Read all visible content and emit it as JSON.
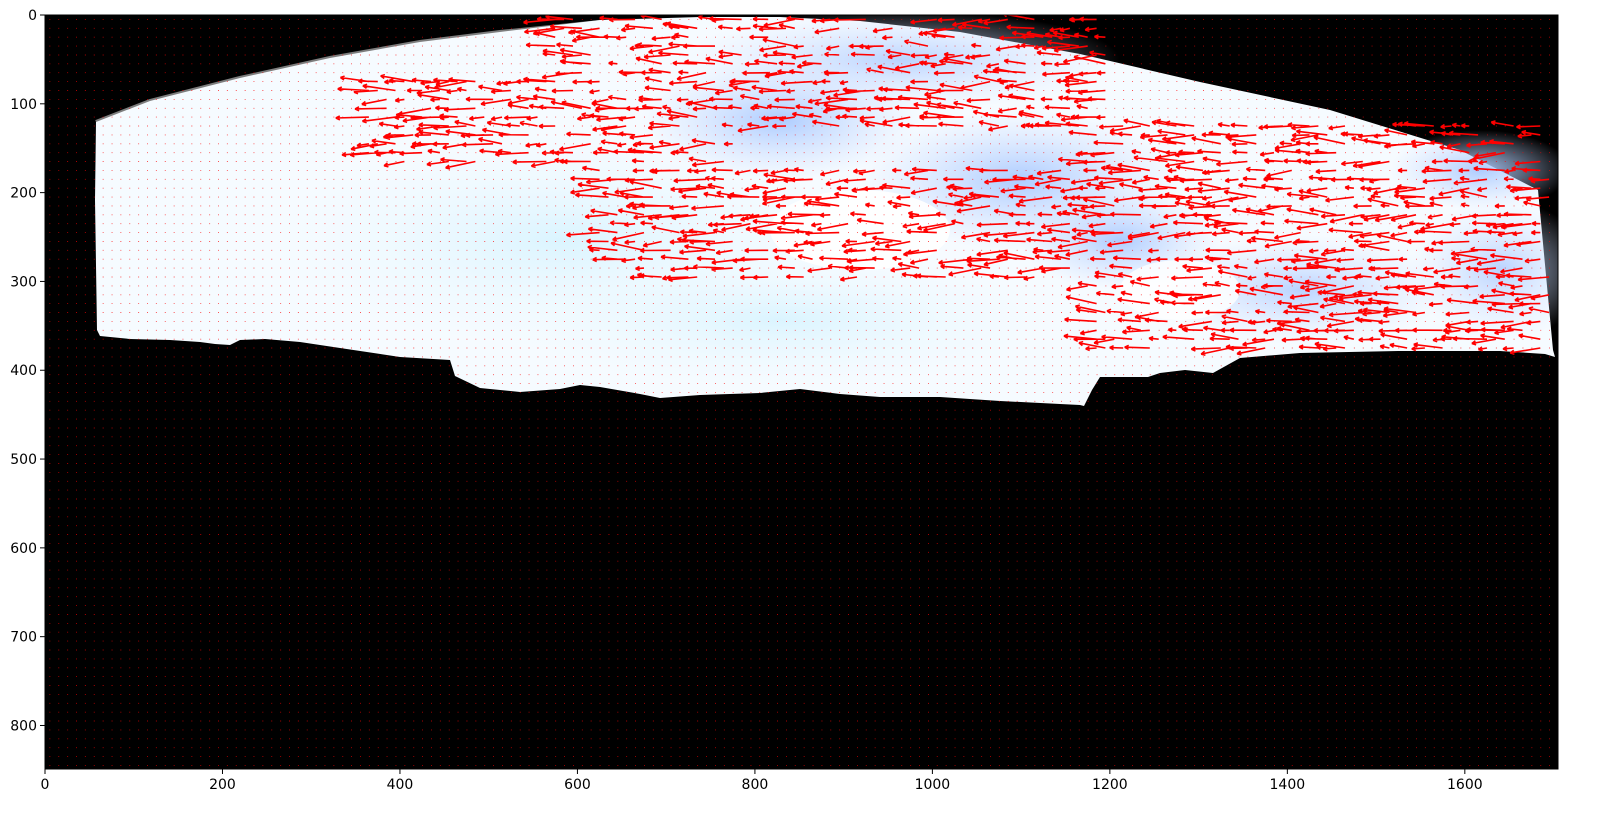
{
  "figure": {
    "image": {
      "description_free": true,
      "colors": {
        "background": "#000000",
        "sky_light": "#f4fbff",
        "sky_cyan": "#e2f6ff",
        "sky_blue": "#b9d4ff",
        "arrow": "#ff0000",
        "rim": "#7d7d7d"
      }
    },
    "x_axis": {
      "range": [
        0,
        1705
      ],
      "ticks": [
        "0",
        "200",
        "400",
        "600",
        "800",
        "1000",
        "1200",
        "1400",
        "1600"
      ]
    },
    "y_axis": {
      "range": [
        0,
        849
      ],
      "inverted": true,
      "ticks": [
        "0",
        "100",
        "200",
        "300",
        "400",
        "500",
        "600",
        "700",
        "800"
      ]
    },
    "quiver": {
      "grid_step": 10,
      "color": "#ff0000",
      "dominant_direction": "left",
      "active_regions": [
        {
          "x": [
            570,
            1200
          ],
          "y": [
            5,
            130
          ]
        },
        {
          "x": [
            360,
            780
          ],
          "y": [
            70,
            170
          ]
        },
        {
          "x": [
            620,
            1180
          ],
          "y": [
            170,
            300
          ]
        },
        {
          "x": [
            1170,
            1700
          ],
          "y": [
            120,
            380
          ]
        }
      ]
    }
  }
}
